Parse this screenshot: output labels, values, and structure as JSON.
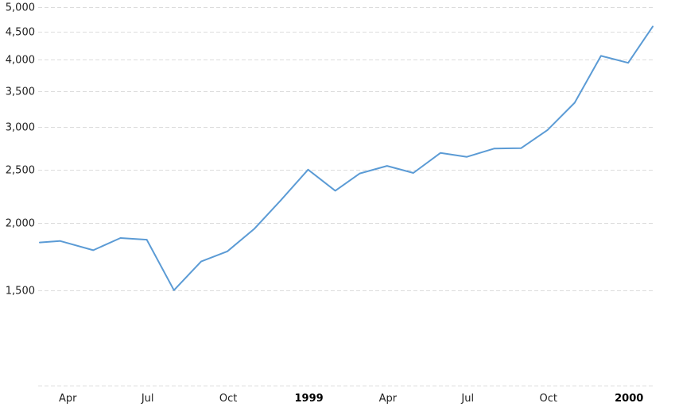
{
  "chart_data": {
    "type": "line",
    "title": "",
    "xlabel": "",
    "ylabel": "",
    "y_scale": "log",
    "ylim": [
      1000,
      5000
    ],
    "y_ticks": [
      {
        "value": 1500,
        "label": "1,500"
      },
      {
        "value": 2000,
        "label": "2,000"
      },
      {
        "value": 2500,
        "label": "2,500"
      },
      {
        "value": 3000,
        "label": "3,000"
      },
      {
        "value": 3500,
        "label": "3,500"
      },
      {
        "value": 4000,
        "label": "4,000"
      },
      {
        "value": 4500,
        "label": "4,500"
      },
      {
        "value": 5000,
        "label": "5,000"
      }
    ],
    "x_ticks": [
      {
        "date": "1998-04-01",
        "label": "Apr",
        "bold": false
      },
      {
        "date": "1998-07-01",
        "label": "Jul",
        "bold": false
      },
      {
        "date": "1998-10-01",
        "label": "Oct",
        "bold": false
      },
      {
        "date": "1999-01-01",
        "label": "1999",
        "bold": true
      },
      {
        "date": "1999-04-01",
        "label": "Apr",
        "bold": false
      },
      {
        "date": "1999-07-01",
        "label": "Jul",
        "bold": false
      },
      {
        "date": "1999-10-01",
        "label": "Oct",
        "bold": false
      },
      {
        "date": "2000-01-01",
        "label": "2000",
        "bold": true
      }
    ],
    "grid": true,
    "series": [
      {
        "color": "#5b9bd5",
        "points": [
          {
            "date": "1998-02-28",
            "value": 1838
          },
          {
            "date": "1998-03-23",
            "value": 1850
          },
          {
            "date": "1998-04-30",
            "value": 1778
          },
          {
            "date": "1998-05-31",
            "value": 1873
          },
          {
            "date": "1998-06-30",
            "value": 1860
          },
          {
            "date": "1998-07-31",
            "value": 1500
          },
          {
            "date": "1998-08-31",
            "value": 1695
          },
          {
            "date": "1998-09-30",
            "value": 1770
          },
          {
            "date": "1998-10-31",
            "value": 1950
          },
          {
            "date": "1998-11-30",
            "value": 2200
          },
          {
            "date": "1998-12-31",
            "value": 2505
          },
          {
            "date": "1999-01-31",
            "value": 2290
          },
          {
            "date": "1999-02-28",
            "value": 2465
          },
          {
            "date": "1999-03-31",
            "value": 2545
          },
          {
            "date": "1999-04-30",
            "value": 2470
          },
          {
            "date": "1999-05-31",
            "value": 2690
          },
          {
            "date": "1999-06-30",
            "value": 2645
          },
          {
            "date": "1999-07-31",
            "value": 2740
          },
          {
            "date": "1999-08-31",
            "value": 2745
          },
          {
            "date": "1999-09-30",
            "value": 2965
          },
          {
            "date": "1999-10-31",
            "value": 3330
          },
          {
            "date": "1999-11-30",
            "value": 4065
          },
          {
            "date": "1999-12-31",
            "value": 3945
          },
          {
            "date": "2000-01-28",
            "value": 4605
          }
        ]
      }
    ]
  }
}
